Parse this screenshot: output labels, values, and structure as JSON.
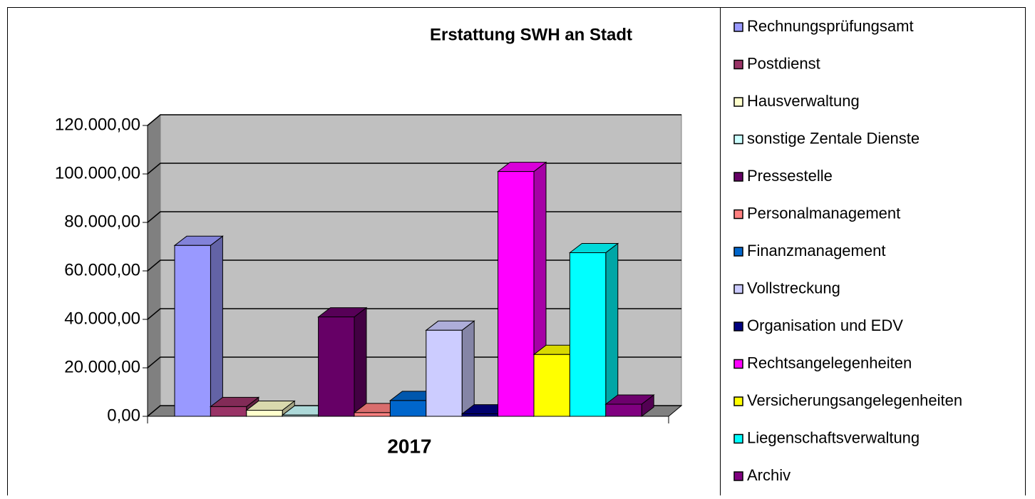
{
  "chart_data": {
    "type": "bar3d",
    "title": "Erstattung SWH an Stadt",
    "categories": [
      "2017"
    ],
    "series": [
      {
        "name": "Rechnungsprüfungsamt",
        "color": "#9999ff",
        "values": [
          70500
        ]
      },
      {
        "name": "Postdienst",
        "color": "#993366",
        "values": [
          4000
        ]
      },
      {
        "name": "Hausverwaltung",
        "color": "#ffffcc",
        "values": [
          2500
        ]
      },
      {
        "name": "sonstige Zentale Dienste",
        "color": "#ccffff",
        "values": [
          500
        ]
      },
      {
        "name": "Pressestelle",
        "color": "#660066",
        "values": [
          41000
        ]
      },
      {
        "name": "Personalmanagement",
        "color": "#ff8080",
        "values": [
          1500
        ]
      },
      {
        "name": "Finanzmanagement",
        "color": "#0066cc",
        "values": [
          6500
        ]
      },
      {
        "name": "Vollstreckung",
        "color": "#ccccff",
        "values": [
          35500
        ]
      },
      {
        "name": "Organisation und EDV",
        "color": "#000080",
        "values": [
          1000
        ]
      },
      {
        "name": "Rechtsangelegenheiten",
        "color": "#ff00ff",
        "values": [
          101000
        ]
      },
      {
        "name": "Versicherungsangelegenheiten",
        "color": "#ffff00",
        "values": [
          25500
        ]
      },
      {
        "name": "Liegenschaftsverwaltung",
        "color": "#00ffff",
        "values": [
          67500
        ]
      },
      {
        "name": "Archiv",
        "color": "#800080",
        "values": [
          5000
        ]
      }
    ],
    "ylim": [
      0,
      120000
    ],
    "yticks": [
      {
        "value": 0,
        "label": "0,00"
      },
      {
        "value": 20000,
        "label": "20.000,00"
      },
      {
        "value": 40000,
        "label": "40.000,00"
      },
      {
        "value": 60000,
        "label": "60.000,00"
      },
      {
        "value": 80000,
        "label": "80.000,00"
      },
      {
        "value": 100000,
        "label": "100.000,00"
      },
      {
        "value": 120000,
        "label": "120.000,00"
      }
    ],
    "grid": true,
    "legend": "right"
  }
}
